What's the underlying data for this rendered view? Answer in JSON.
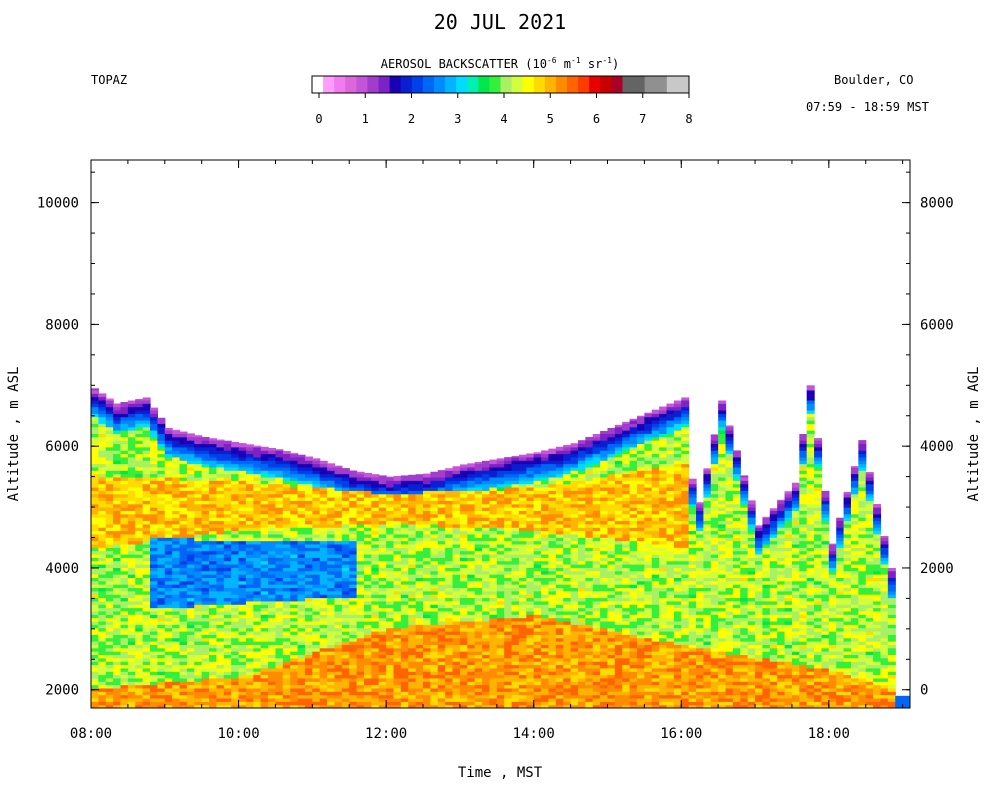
{
  "header": {
    "title": "20 JUL 2021",
    "site": "TOPAZ",
    "location": "Boulder, CO",
    "time_range": "07:59 - 18:59 MST"
  },
  "colorbar": {
    "title": "AEROSOL BACKSCATTER (10^-6 m^-1 sr^-1)",
    "title_parts": {
      "main": "AEROSOL BACKSCATTER (10",
      "e1": "-6",
      "m": " m",
      "e2": "-1",
      "sr": " sr",
      "e3": "-1",
      "close": ")"
    },
    "ticks": [
      "0",
      "1",
      "2",
      "3",
      "4",
      "5",
      "6",
      "7",
      "8"
    ],
    "colors": [
      "#ffffff",
      "#ff9cff",
      "#f07cf0",
      "#dd66dd",
      "#c455d8",
      "#a23ccd",
      "#7d22c4",
      "#1a00b4",
      "#0a1fd2",
      "#0040e8",
      "#0066f5",
      "#008cff",
      "#00b4ff",
      "#00dcff",
      "#00f0b4",
      "#00e64b",
      "#32f03c",
      "#aaf064",
      "#d2ff3c",
      "#ffff00",
      "#ffdc00",
      "#ffb400",
      "#ff8c00",
      "#ff6400",
      "#ff3c00",
      "#e60000",
      "#c80000",
      "#aa0028",
      "#646464",
      "#646464",
      "#909090",
      "#909090",
      "#c8c8c8",
      "#c8c8c8"
    ]
  },
  "chart_data": {
    "type": "heatmap",
    "title": "20 JUL 2021",
    "xlabel": "Time , MST",
    "ylabel_left": "Altitude , m ASL",
    "ylabel_right": "Altitude , m AGL",
    "x_tick_labels": [
      "08:00",
      "10:00",
      "12:00",
      "14:00",
      "16:00",
      "18:00"
    ],
    "x_ticks_hours": [
      8,
      10,
      12,
      14,
      16,
      18
    ],
    "xlim_hours": [
      8,
      19.1
    ],
    "y_left_ticks": [
      2000,
      4000,
      6000,
      8000,
      10000
    ],
    "y_left_lim": [
      1700,
      10700
    ],
    "y_right_ticks": [
      0,
      2000,
      4000,
      6000,
      8000
    ],
    "agl_offset_m": 2000,
    "grid": false,
    "colorbar_range": [
      0,
      8
    ],
    "profile_top_asl": {
      "hours": [
        8.0,
        8.3,
        8.7,
        9.0,
        9.5,
        10.0,
        10.5,
        11.0,
        11.5,
        12.0,
        12.5,
        13.0,
        13.5,
        14.0,
        14.5,
        15.0,
        15.5,
        16.0,
        16.15,
        16.5,
        17.0,
        17.5,
        17.7,
        18.0,
        18.4,
        18.8
      ],
      "values": [
        6950,
        6700,
        6800,
        6300,
        6150,
        6050,
        5950,
        5800,
        5600,
        5500,
        5550,
        5700,
        5800,
        5900,
        6050,
        6300,
        6550,
        6800,
        4800,
        6750,
        4700,
        5400,
        7000,
        4400,
        6100,
        4000
      ]
    },
    "layers": [
      {
        "name": "surface high backscatter",
        "hours": [
          8.0,
          10.0,
          12.0,
          14.0,
          16.0,
          18.0,
          18.8
        ],
        "top_asl": [
          2000,
          2200,
          3000,
          3200,
          2700,
          2300,
          2000
        ],
        "level": 5.0
      },
      {
        "name": "clean layer",
        "hours": [
          8.8,
          10.0,
          11.5
        ],
        "bottom_asl": [
          3300,
          3400,
          3500
        ],
        "top_asl": [
          4500,
          4400,
          4400
        ],
        "level": 2.4
      },
      {
        "name": "elevated smoke layer",
        "hours": [
          8.0,
          10.0,
          12.0,
          14.0,
          16.0
        ],
        "bottom_asl": [
          4300,
          4600,
          4700,
          4600,
          4300
        ],
        "top_asl": [
          5500,
          5400,
          5200,
          5300,
          5700
        ],
        "level": 4.7
      }
    ]
  }
}
